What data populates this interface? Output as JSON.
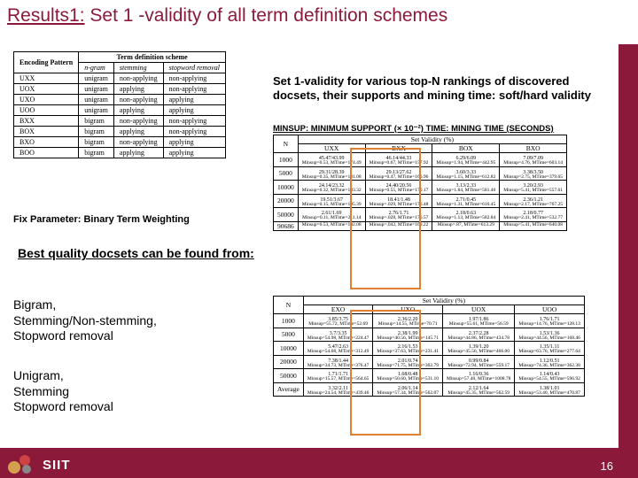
{
  "title": {
    "prefix": "Results1:",
    "rest": " Set 1 -validity of all term definition schemes"
  },
  "scheme_table": {
    "headers": [
      "Encoding Pattern",
      "Term definition scheme"
    ],
    "subheaders": [
      "n-gram",
      "stemming",
      "stopword removal"
    ],
    "rows": [
      [
        "UXX",
        "unigram",
        "non-applying",
        "non-applying"
      ],
      [
        "UOX",
        "unigram",
        "applying",
        "non-applying"
      ],
      [
        "UXO",
        "unigram",
        "non-applying",
        "applying"
      ],
      [
        "UOO",
        "unigram",
        "applying",
        "applying"
      ],
      [
        "BXX",
        "bigram",
        "non-applying",
        "non-applying"
      ],
      [
        "BOX",
        "bigram",
        "applying",
        "non-applying"
      ],
      [
        "BXO",
        "bigram",
        "non-applying",
        "applying"
      ],
      [
        "BOO",
        "bigram",
        "applying",
        "applying"
      ]
    ]
  },
  "subhead": "Set 1-validity for various top-N rankings of discovered docsets, their supports and mining time: soft/hard validity",
  "minsup_line": "MINSUP: MINIMUM SUPPORT (× 10⁻²) TIME: MINING TIME (SECONDS)",
  "fixparam": "Fix Parameter: Binary Term Weighting",
  "bestq": "Best quality docsets can be found from:",
  "bigram_block": [
    "Bigram,",
    "Stemming/Non-stemming,",
    "Stopword removal"
  ],
  "unigram_block": [
    "Unigram,",
    "Stemming",
    "Stopword removal"
  ],
  "validity_header": "Set Validity (%)",
  "table1": {
    "cols": [
      "N",
      "UXX",
      "BXX",
      "BOX",
      "BXO"
    ],
    "rows": [
      {
        "n": "1000",
        "v": [
          "45.47/43.99",
          "46.14/44.33",
          "6.29/6.09",
          "7.09/7.09"
        ],
        "m": [
          "Minsup=0.53, MTime=174.49",
          "Minsup=0.67, MTime=157.92",
          "Minsup=1.94, MTime=442.95",
          "Minsup=4.76, MTime=603.14"
        ]
      },
      {
        "n": "5000",
        "v": [
          "29.31/28.39",
          "29.13/27.62",
          "3.60/3.33",
          "3.38/3.50"
        ],
        "m": [
          "Minsup=0.35, MTime=181.08",
          "Minsup=0.47, MTime=166.96",
          "Minsup=1.15, MTime=612.82",
          "Minsup=2.75, MTime=379.65"
        ]
      },
      {
        "n": "10000",
        "v": [
          "24.14/23.32",
          "24.40/20.56",
          "3.13/2.33",
          "3.20/2.93"
        ],
        "m": [
          "Minsup=0.32, MTime=183.32",
          "Minsup=0.55, MTime=170.17",
          "Minsup=1.84, MTime=581.40",
          "Minsup=5.41, MTime=557.61"
        ]
      },
      {
        "n": "20000",
        "v": [
          "19.51/3.67",
          "18.41/1.48",
          "2.71/0.45",
          "2.36/1.21"
        ],
        "m": [
          "Minsup=0.15, MTime=195.39",
          "Minsup=.029, MTime=176.48",
          "Minsup=1.31, MTime=616.45",
          "Minsup=2.17, MTime=767.25"
        ]
      },
      {
        "n": "50000",
        "v": [
          "2.61/1.69",
          "2.76/1.71",
          "2.18/0.63",
          "2.18/0.77"
        ],
        "m": [
          "Minsup=0.11, MTime=211.14",
          "Minsup=.028, MTime=176.57",
          "Minsup=1.13, MTime=582.84",
          "Minsup=2.41, MTime=532.77"
        ]
      },
      {
        "n": "90686",
        "v": [
          "",
          "",
          "",
          ""
        ],
        "m": [
          "Minsup=0.53, MTime=192.08",
          "Minsup=.042, MTime=169.22",
          "Minsup=.87, MTime=613.29",
          "Minsup=5.41, MTime=640.08"
        ]
      }
    ]
  },
  "table2": {
    "cols": [
      "N",
      "EXO",
      "UXO",
      "UOX",
      "UOO"
    ],
    "rows": [
      {
        "n": "1000",
        "v": [
          "3.85/3.75",
          "2.36/2.20",
          "1.97/1.86",
          "1.76/1.71"
        ],
        "m": [
          "Minsup=55.72, MTime=52.69",
          "Minsup=14.55, MTime=70.71",
          "Minsup=55.61, MTime=56.59",
          "Minsup=14.76, MTime=128.13"
        ]
      },
      {
        "n": "5000",
        "v": [
          "3.7/3.35",
          "2.38/1.99",
          "2.37/2.28",
          "1.53/1.36"
        ],
        "m": [
          "Minsup=54.98, MTime=224.47",
          "Minsup=40.56, MTime=145.71",
          "Minsup=44.86, MTime=434.78",
          "Minsup=44.56, MTime=168.46"
        ]
      },
      {
        "n": "10000",
        "v": [
          "5.47/2.63",
          "2.16/1.53",
          "1.39/1.20",
          "1.35/1.11"
        ],
        "m": [
          "Minsup=54.68, MTime=312.49",
          "Minsup=37.63, MTime=231.41",
          "Minsup=45.56, MTime=466.00",
          "Minsup=63.76, MTime=277.64"
        ]
      },
      {
        "n": "20000",
        "v": [
          "7.38/1.44",
          "2.01/0.74",
          "0.99/0.84",
          "1.12/0.51"
        ],
        "m": [
          "Minsup=34.73, MTime=376.47",
          "Minsup=71.75, MTime=302.79",
          "Minsup=72.94, MTime=559.17",
          "Minsup=74.36, MTime=362.38"
        ]
      },
      {
        "n": "50000",
        "v": [
          "1.71/1.71",
          "1.68/0.48",
          "1.16/0.36",
          "1.14/0.43"
        ],
        "m": [
          "Minsup=15.57, MTime=564.65",
          "Minsup=50.60, MTime=531.10",
          "Minsup=57.40, MTime=1008.78",
          "Minsup=54.55, MTime=596.92"
        ]
      },
      {
        "n": "Average",
        "v": [
          "3.32/2.11",
          "2.06/1.14",
          "2.12/1.64",
          "1.38/1.01"
        ],
        "m": [
          "Minsup=24.54, MTime=439.46",
          "Minsup=57.34, MTime=562.07",
          "Minsup=45.35, MTime=562.59",
          "Minsup=53.40, MTime=470.87"
        ]
      }
    ]
  },
  "siit": "SIIT",
  "pagenum": "16"
}
